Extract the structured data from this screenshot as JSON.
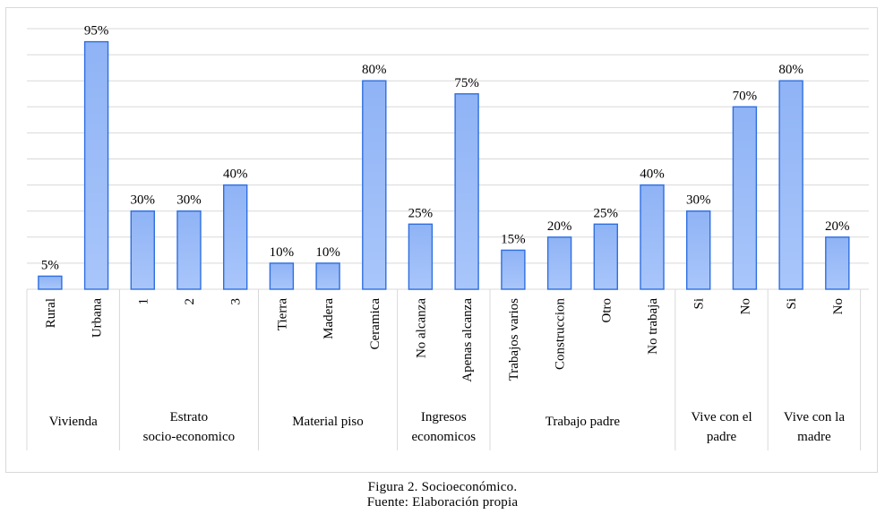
{
  "chart_data": {
    "type": "bar",
    "ylim": [
      0,
      100
    ],
    "grid": true,
    "bar_color": "#7fa7f2",
    "bar_edge_color": "#2f6fe0",
    "grid_color": "#d9d9d9",
    "groups": [
      {
        "label": "Vivienda",
        "categories": [
          "Rural",
          "Urbana"
        ],
        "values": [
          5,
          95
        ]
      },
      {
        "label": "Estrato socio-economico",
        "categories": [
          "1",
          "2",
          "3"
        ],
        "values": [
          30,
          30,
          40
        ]
      },
      {
        "label": "Material piso",
        "categories": [
          "Tierra",
          "Madera",
          "Ceramica"
        ],
        "values": [
          10,
          10,
          80
        ]
      },
      {
        "label": "Ingresos economicos",
        "categories": [
          "No alcanza",
          "Apenas alcanza"
        ],
        "values": [
          25,
          75
        ]
      },
      {
        "label": "Trabajo padre",
        "categories": [
          "Trabajos varios",
          "Construccion",
          "Otro",
          "No trabaja"
        ],
        "values": [
          15,
          20,
          25,
          40
        ]
      },
      {
        "label": "Vive con el padre",
        "categories": [
          "Si",
          "No"
        ],
        "values": [
          30,
          70
        ]
      },
      {
        "label": "Vive con la madre",
        "categories": [
          "Si",
          "No"
        ],
        "values": [
          80,
          20
        ]
      }
    ],
    "value_labels": [
      "5%",
      "95%",
      "30%",
      "30%",
      "40%",
      "10%",
      "10%",
      "80%",
      "25%",
      "75%",
      "15%",
      "20%",
      "25%",
      "40%",
      "30%",
      "70%",
      "80%",
      "20%"
    ]
  },
  "caption": {
    "line1": "Figura  2. Socioeconómico.",
    "line2": "Fuente:  Elaboración  propia"
  }
}
